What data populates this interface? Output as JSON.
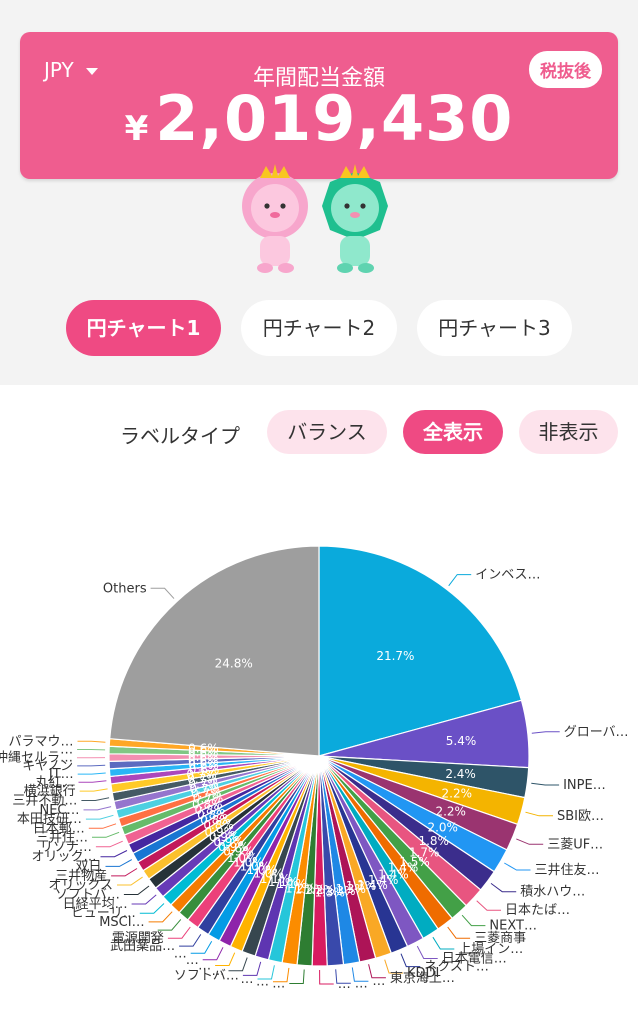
{
  "header": {
    "currency": "JPY",
    "title": "年間配当金額",
    "amount_symbol": "¥",
    "amount": "2,019,430",
    "tax_label": "税抜後"
  },
  "tabs": [
    {
      "label": "円チャート1",
      "active": true
    },
    {
      "label": "円チャート2",
      "active": false
    },
    {
      "label": "円チャート3",
      "active": false
    }
  ],
  "label_type": {
    "label": "ラベルタイプ",
    "options": [
      {
        "label": "バランス",
        "active": false
      },
      {
        "label": "全表示",
        "active": true
      },
      {
        "label": "非表示",
        "active": false
      }
    ]
  },
  "chart_data": {
    "type": "pie",
    "slices": [
      {
        "name": "インベス…",
        "value": 21.7,
        "pct_label": "21.7%",
        "color": "#0aaadc"
      },
      {
        "name": "グローバ…",
        "value": 5.4,
        "pct_label": "5.4%",
        "color": "#6a50c6"
      },
      {
        "name": "INPE…",
        "value": 2.4,
        "pct_label": "2.4%",
        "color": "#2e5468"
      },
      {
        "name": "SBI欧…",
        "value": 2.2,
        "pct_label": "2.2%",
        "color": "#f4b400"
      },
      {
        "name": "三菱UF…",
        "value": 2.2,
        "pct_label": "2.2%",
        "color": "#9a3470"
      },
      {
        "name": "三井住友…",
        "value": 2.0,
        "pct_label": "2.0%",
        "color": "#2196f3"
      },
      {
        "name": "積水ハウ…",
        "value": 1.8,
        "pct_label": "1.8%",
        "color": "#3b2d8c"
      },
      {
        "name": "日本たば…",
        "value": 1.7,
        "pct_label": "1.7%",
        "color": "#e85580"
      },
      {
        "name": "NEXT…",
        "value": 1.5,
        "pct_label": "1.5%",
        "color": "#43a047"
      },
      {
        "name": "三菱商事",
        "value": 1.4,
        "pct_label": "1.4%",
        "color": "#ef6c00"
      },
      {
        "name": "上場イン…",
        "value": 1.4,
        "pct_label": "1.4%",
        "color": "#00acc1"
      },
      {
        "name": "日本電信…",
        "value": 1.4,
        "pct_label": "1.4%",
        "color": "#7e57c2"
      },
      {
        "name": "ネクスト…",
        "value": 1.4,
        "pct_label": "1.4%",
        "color": "#283593"
      },
      {
        "name": "KDDI",
        "value": 1.3,
        "pct_label": "1.3%",
        "color": "#f9a825"
      },
      {
        "name": "東京海上…",
        "value": 1.3,
        "pct_label": "1.3%",
        "color": "#ad1457"
      },
      {
        "name": "…",
        "value": 1.3,
        "pct_label": "1.3%",
        "color": "#1e88e5"
      },
      {
        "name": "…",
        "value": 1.3,
        "pct_label": "1.3%",
        "color": "#3949ab"
      },
      {
        "name": "…",
        "value": 1.2,
        "pct_label": "1.2%",
        "color": "#d81b60"
      },
      {
        "name": "…",
        "value": 1.2,
        "pct_label": "1.2%",
        "color": "#2e7d32"
      },
      {
        "name": "…",
        "value": 1.2,
        "pct_label": "1.2%",
        "color": "#fb8c00"
      },
      {
        "name": "…",
        "value": 1.1,
        "pct_label": "1.1%",
        "color": "#26c6da"
      },
      {
        "name": "ソフトバ…",
        "value": 1.1,
        "pct_label": "1.1%",
        "color": "#5e35b1"
      },
      {
        "name": "…",
        "value": 1.1,
        "pct_label": "1.1%",
        "color": "#37474f"
      },
      {
        "name": "…",
        "value": 1.0,
        "pct_label": "1.0%",
        "color": "#ffb300"
      },
      {
        "name": "…",
        "value": 1.0,
        "pct_label": "1.0%",
        "color": "#8e24aa"
      },
      {
        "name": "…",
        "value": 1.0,
        "pct_label": "1.0%",
        "color": "#039be5"
      },
      {
        "name": "武田薬品…",
        "value": 1.0,
        "pct_label": "1.0%",
        "color": "#303f9f"
      },
      {
        "name": "電源開発",
        "value": 1.0,
        "pct_label": "1.0%",
        "color": "#ec407a"
      },
      {
        "name": "…",
        "value": 0.9,
        "pct_label": "0.9%",
        "color": "#388e3c"
      },
      {
        "name": "MSCI…",
        "value": 0.9,
        "pct_label": "0.9%",
        "color": "#f57c00"
      },
      {
        "name": "ヒューリ…",
        "value": 0.9,
        "pct_label": "0.9%",
        "color": "#00bcd4"
      },
      {
        "name": "日経平均…",
        "value": 0.9,
        "pct_label": "0.9%",
        "color": "#673ab7"
      },
      {
        "name": "ソフトバ…",
        "value": 0.9,
        "pct_label": "0.9%",
        "color": "#263238"
      },
      {
        "name": "オリックス",
        "value": 0.8,
        "pct_label": "0.8%",
        "color": "#fbc02d"
      },
      {
        "name": "三井物産",
        "value": 0.8,
        "pct_label": "0.8%",
        "color": "#c2185b"
      },
      {
        "name": "双日",
        "value": 0.8,
        "pct_label": "0.8%",
        "color": "#1976d2"
      },
      {
        "name": "オリック…",
        "value": 0.8,
        "pct_label": "0.8%",
        "color": "#4527a0"
      },
      {
        "name": "リソナ…",
        "value": 0.8,
        "pct_label": "0.8%",
        "color": "#f06292"
      },
      {
        "name": "三井住…",
        "value": 0.7,
        "pct_label": "0.7%",
        "color": "#66bb6a"
      },
      {
        "name": "日本郵…",
        "value": 0.7,
        "pct_label": "0.7%",
        "color": "#ff7043"
      },
      {
        "name": "本田技研…",
        "value": 0.7,
        "pct_label": "0.7%",
        "color": "#4dd0e1"
      },
      {
        "name": "NEC…",
        "value": 0.7,
        "pct_label": "0.7%",
        "color": "#9575cd"
      },
      {
        "name": "三井不動…",
        "value": 0.7,
        "pct_label": "0.7%",
        "color": "#455a64"
      },
      {
        "name": "横浜銀行",
        "value": 0.7,
        "pct_label": "0.7%",
        "color": "#ffca28"
      },
      {
        "name": "丸紅…",
        "value": 0.6,
        "pct_label": "0.6%",
        "color": "#ab47bc"
      },
      {
        "name": "JT…",
        "value": 0.6,
        "pct_label": "0.6%",
        "color": "#29b6f6"
      },
      {
        "name": "キヤノン",
        "value": 0.6,
        "pct_label": "0.6%",
        "color": "#5c6bc0"
      },
      {
        "name": "沖縄セルラ…",
        "value": 0.6,
        "pct_label": "0.6%",
        "color": "#f48fb1"
      },
      {
        "name": "…",
        "value": 0.6,
        "pct_label": "0.6%",
        "color": "#81c784"
      },
      {
        "name": "パラマウ…",
        "value": 0.6,
        "pct_label": "0.6%",
        "color": "#ffa726"
      },
      {
        "name": "Others",
        "value": 24.8,
        "pct_label": "24.8%",
        "color": "#9e9e9e"
      }
    ]
  }
}
